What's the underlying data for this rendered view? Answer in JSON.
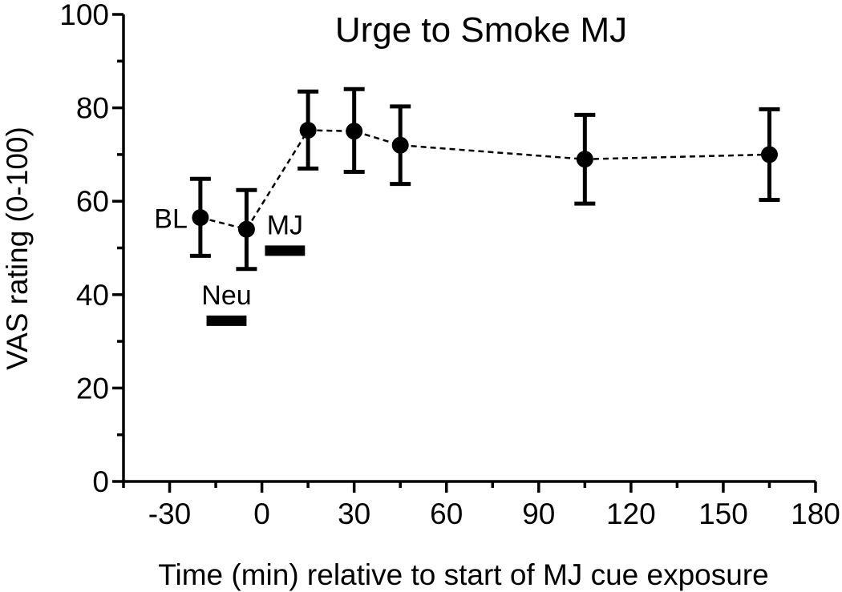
{
  "chart_data": {
    "type": "scatter",
    "title": "Urge to Smoke MJ",
    "xlabel": "Time (min) relative to start of MJ cue exposure",
    "ylabel": "VAS rating (0-100)",
    "xlim": [
      -45,
      180
    ],
    "ylim": [
      0,
      100
    ],
    "x_ticks": [
      -30,
      0,
      30,
      60,
      90,
      120,
      150,
      180
    ],
    "y_ticks": [
      0,
      20,
      40,
      60,
      80,
      100
    ],
    "y_minor_step": 10,
    "x_minor_step": 15,
    "grid": false,
    "series": [
      {
        "line_style": "dashed",
        "x": [
          -20,
          -5,
          15,
          30,
          45,
          105,
          165
        ],
        "y": [
          56.5,
          54,
          75.2,
          75,
          72,
          69,
          70
        ],
        "error_low": [
          48.3,
          45.5,
          67,
          66.3,
          63.7,
          59.5,
          60.3
        ],
        "error_high": [
          64.8,
          62.4,
          83.5,
          84,
          80.3,
          78.5,
          79.7
        ]
      }
    ],
    "phase_bars": [
      {
        "label": "Neu",
        "x_start": -18,
        "x_end": -5,
        "y": 34.5
      },
      {
        "label": "MJ",
        "x_start": 1,
        "x_end": 14,
        "y": 49.5
      }
    ],
    "annotations": [
      {
        "text": "BL",
        "x": -20,
        "y": 56.5
      }
    ]
  }
}
